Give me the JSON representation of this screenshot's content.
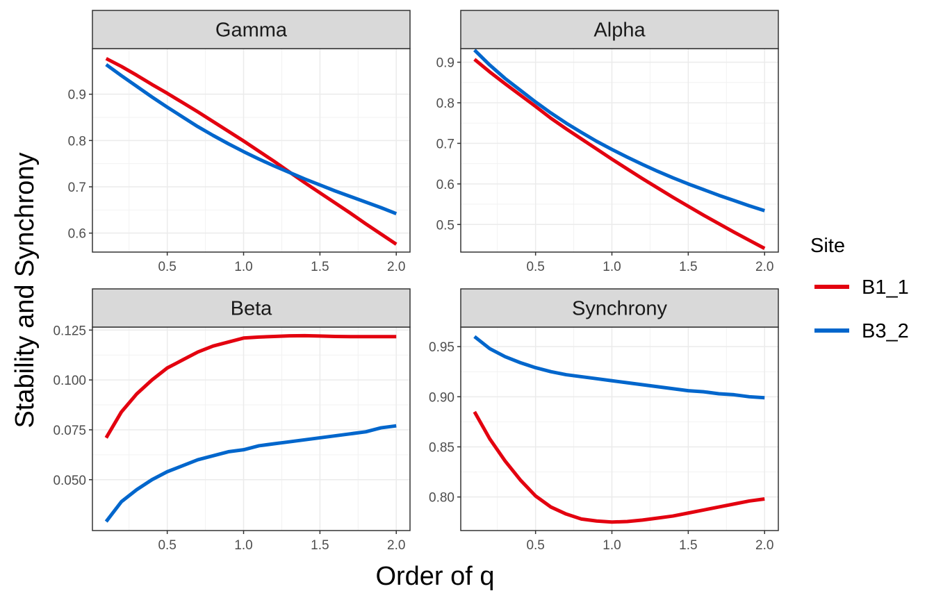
{
  "chart_data": {
    "type": "line",
    "xlabel": "Order of q",
    "ylabel": "Stability and Synchrony",
    "legend": {
      "title": "Site",
      "placement": "right",
      "entries": [
        {
          "label": "B1_1",
          "color": "#e3000f"
        },
        {
          "label": "B3_2",
          "color": "#0066cc"
        }
      ]
    },
    "x_ticks": [
      "0.5",
      "1.0",
      "1.5",
      "2.0"
    ],
    "grid": true,
    "panels": [
      {
        "title": "Gamma",
        "xlim": [
          0.01,
          2.09
        ],
        "ylim": [
          0.559,
          0.9985
        ],
        "y_ticks": [
          0.6,
          0.7,
          0.8,
          0.9
        ],
        "y_tick_labels": [
          "0.6",
          "0.7",
          "0.8",
          "0.9"
        ],
        "series": [
          {
            "name": "B1_1",
            "color": "#e3000f",
            "x": [
              0.1,
              0.2,
              0.3,
              0.4,
              0.5,
              0.6,
              0.7,
              0.8,
              0.9,
              1.0,
              1.1,
              1.2,
              1.3,
              1.4,
              1.5,
              1.6,
              1.7,
              1.8,
              1.9,
              2.0
            ],
            "y": [
              0.977,
              0.96,
              0.941,
              0.921,
              0.902,
              0.882,
              0.862,
              0.841,
              0.82,
              0.799,
              0.777,
              0.755,
              0.732,
              0.709,
              0.687,
              0.665,
              0.643,
              0.62,
              0.598,
              0.576
            ]
          },
          {
            "name": "B3_2",
            "color": "#0066cc",
            "x": [
              0.1,
              0.2,
              0.3,
              0.4,
              0.5,
              0.6,
              0.7,
              0.8,
              0.9,
              1.0,
              1.1,
              1.2,
              1.3,
              1.4,
              1.5,
              1.6,
              1.7,
              1.8,
              1.9,
              2.0
            ],
            "y": [
              0.964,
              0.94,
              0.917,
              0.894,
              0.872,
              0.851,
              0.83,
              0.811,
              0.793,
              0.776,
              0.76,
              0.745,
              0.731,
              0.717,
              0.704,
              0.691,
              0.679,
              0.667,
              0.655,
              0.642
            ]
          }
        ]
      },
      {
        "title": "Alpha",
        "xlim": [
          0.01,
          2.09
        ],
        "ylim": [
          0.432,
          0.9335
        ],
        "y_ticks": [
          0.5,
          0.6,
          0.7,
          0.8,
          0.9
        ],
        "y_tick_labels": [
          "0.5",
          "0.6",
          "0.7",
          "0.8",
          "0.9"
        ],
        "series": [
          {
            "name": "B1_1",
            "color": "#e3000f",
            "x": [
              0.1,
              0.2,
              0.3,
              0.4,
              0.5,
              0.6,
              0.7,
              0.8,
              0.9,
              1.0,
              1.1,
              1.2,
              1.3,
              1.4,
              1.5,
              1.6,
              1.7,
              1.8,
              1.9,
              2.0
            ],
            "y": [
              0.907,
              0.876,
              0.847,
              0.819,
              0.791,
              0.762,
              0.736,
              0.711,
              0.686,
              0.661,
              0.637,
              0.613,
              0.59,
              0.567,
              0.545,
              0.523,
              0.502,
              0.481,
              0.461,
              0.441
            ]
          },
          {
            "name": "B3_2",
            "color": "#0066cc",
            "x": [
              0.1,
              0.2,
              0.3,
              0.4,
              0.5,
              0.6,
              0.7,
              0.8,
              0.9,
              1.0,
              1.1,
              1.2,
              1.3,
              1.4,
              1.5,
              1.6,
              1.7,
              1.8,
              1.9,
              2.0
            ],
            "y": [
              0.93,
              0.893,
              0.86,
              0.831,
              0.802,
              0.775,
              0.75,
              0.727,
              0.705,
              0.685,
              0.666,
              0.648,
              0.631,
              0.615,
              0.6,
              0.586,
              0.572,
              0.559,
              0.546,
              0.534
            ]
          }
        ]
      },
      {
        "title": "Beta",
        "xlim": [
          0.01,
          2.09
        ],
        "ylim": [
          0.0245,
          0.1265
        ],
        "y_ticks": [
          0.05,
          0.075,
          0.1,
          0.125
        ],
        "y_tick_labels": [
          "0.050",
          "0.075",
          "0.100",
          "0.125"
        ],
        "series": [
          {
            "name": "B1_1",
            "color": "#e3000f",
            "x": [
              0.1,
              0.2,
              0.3,
              0.4,
              0.5,
              0.6,
              0.7,
              0.8,
              0.9,
              1.0,
              1.1,
              1.2,
              1.3,
              1.4,
              1.5,
              1.6,
              1.7,
              1.8,
              1.9,
              2.0
            ],
            "y": [
              0.071,
              0.084,
              0.093,
              0.1,
              0.106,
              0.11,
              0.114,
              0.117,
              0.119,
              0.121,
              0.1215,
              0.1218,
              0.1221,
              0.1222,
              0.122,
              0.1218,
              0.1217,
              0.1217,
              0.1217,
              0.1217
            ]
          },
          {
            "name": "B3_2",
            "color": "#0066cc",
            "x": [
              0.1,
              0.2,
              0.3,
              0.4,
              0.5,
              0.6,
              0.7,
              0.8,
              0.9,
              1.0,
              1.1,
              1.2,
              1.3,
              1.4,
              1.5,
              1.6,
              1.7,
              1.8,
              1.9,
              2.0
            ],
            "y": [
              0.029,
              0.039,
              0.045,
              0.05,
              0.054,
              0.057,
              0.06,
              0.062,
              0.064,
              0.065,
              0.067,
              0.068,
              0.069,
              0.07,
              0.071,
              0.072,
              0.073,
              0.074,
              0.076,
              0.077
            ]
          }
        ]
      },
      {
        "title": "Synchrony",
        "xlim": [
          0.01,
          2.09
        ],
        "ylim": [
          0.7665,
          0.9695
        ],
        "y_ticks": [
          0.8,
          0.85,
          0.9,
          0.95
        ],
        "y_tick_labels": [
          "0.80",
          "0.85",
          "0.90",
          "0.95"
        ],
        "series": [
          {
            "name": "B1_1",
            "color": "#e3000f",
            "x": [
              0.1,
              0.2,
              0.3,
              0.4,
              0.5,
              0.6,
              0.7,
              0.8,
              0.9,
              1.0,
              1.1,
              1.2,
              1.3,
              1.4,
              1.5,
              1.6,
              1.7,
              1.8,
              1.9,
              2.0
            ],
            "y": [
              0.885,
              0.858,
              0.836,
              0.817,
              0.801,
              0.79,
              0.783,
              0.778,
              0.776,
              0.775,
              0.7755,
              0.777,
              0.779,
              0.781,
              0.784,
              0.787,
              0.79,
              0.793,
              0.796,
              0.798
            ]
          },
          {
            "name": "B3_2",
            "color": "#0066cc",
            "x": [
              0.1,
              0.2,
              0.3,
              0.4,
              0.5,
              0.6,
              0.7,
              0.8,
              0.9,
              1.0,
              1.1,
              1.2,
              1.3,
              1.4,
              1.5,
              1.6,
              1.7,
              1.8,
              1.9,
              2.0
            ],
            "y": [
              0.96,
              0.948,
              0.94,
              0.934,
              0.929,
              0.925,
              0.922,
              0.92,
              0.918,
              0.916,
              0.914,
              0.912,
              0.91,
              0.908,
              0.906,
              0.905,
              0.903,
              0.902,
              0.9,
              0.899
            ]
          }
        ]
      }
    ]
  }
}
